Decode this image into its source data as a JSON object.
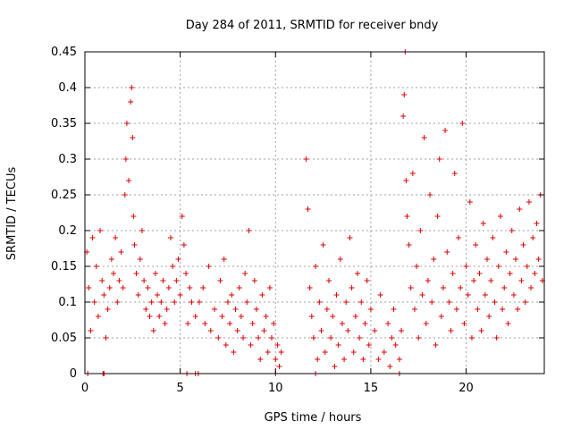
{
  "chart_data": {
    "type": "scatter",
    "title": "Day 284 of 2011, SRMTID for receiver bndy",
    "xlabel": "GPS time / hours",
    "ylabel": "SRMTID / TECUs",
    "xlim": [
      0,
      24.1
    ],
    "ylim": [
      0,
      0.45
    ],
    "xticks": [
      0,
      5,
      10,
      15,
      20
    ],
    "yticks": [
      0,
      0.05,
      0.1,
      0.15,
      0.2,
      0.25,
      0.3,
      0.35,
      0.4,
      0.45
    ],
    "xtick_labels": [
      "0",
      "5",
      "10",
      "15",
      "20"
    ],
    "ytick_labels": [
      "0",
      "0.05",
      "0.1",
      "0.15",
      "0.2",
      "0.25",
      "0.3",
      "0.35",
      "0.4",
      "0.45"
    ],
    "grid": true,
    "marker": "+",
    "color": "#e00000",
    "series": [
      {
        "name": "SRMTID",
        "points": [
          [
            0.1,
            0.17
          ],
          [
            0.2,
            0.12
          ],
          [
            0.3,
            0.06
          ],
          [
            0.4,
            0.19
          ],
          [
            0.5,
            0.1
          ],
          [
            0.6,
            0.15
          ],
          [
            0.7,
            0.08
          ],
          [
            0.8,
            0.2
          ],
          [
            0.9,
            0.13
          ],
          [
            1.0,
            0.11
          ],
          [
            1.1,
            0.05
          ],
          [
            1.2,
            0.09
          ],
          [
            1.3,
            0.12
          ],
          [
            1.4,
            0.16
          ],
          [
            1.5,
            0.14
          ],
          [
            1.6,
            0.19
          ],
          [
            1.7,
            0.1
          ],
          [
            1.8,
            0.13
          ],
          [
            1.9,
            0.17
          ],
          [
            2.0,
            0.12
          ],
          [
            2.1,
            0.25
          ],
          [
            2.15,
            0.3
          ],
          [
            2.2,
            0.35
          ],
          [
            2.3,
            0.27
          ],
          [
            2.4,
            0.38
          ],
          [
            2.45,
            0.4
          ],
          [
            2.5,
            0.33
          ],
          [
            2.55,
            0.22
          ],
          [
            2.6,
            0.18
          ],
          [
            2.7,
            0.14
          ],
          [
            2.8,
            0.11
          ],
          [
            2.9,
            0.16
          ],
          [
            3.0,
            0.2
          ],
          [
            3.1,
            0.13
          ],
          [
            3.2,
            0.09
          ],
          [
            3.3,
            0.12
          ],
          [
            3.4,
            0.08
          ],
          [
            3.5,
            0.1
          ],
          [
            3.6,
            0.06
          ],
          [
            3.7,
            0.14
          ],
          [
            3.8,
            0.11
          ],
          [
            3.9,
            0.08
          ],
          [
            4.0,
            0.1
          ],
          [
            4.1,
            0.13
          ],
          [
            4.2,
            0.07
          ],
          [
            4.3,
            0.09
          ],
          [
            4.4,
            0.12
          ],
          [
            4.5,
            0.19
          ],
          [
            4.6,
            0.15
          ],
          [
            4.7,
            0.1
          ],
          [
            4.8,
            0.13
          ],
          [
            4.9,
            0.16
          ],
          [
            5.0,
            0.11
          ],
          [
            5.1,
            0.22
          ],
          [
            5.2,
            0.18
          ],
          [
            5.3,
            0.14
          ],
          [
            5.4,
            0.07
          ],
          [
            5.5,
            0.12
          ],
          [
            5.6,
            0.1
          ],
          [
            5.8,
            0.08
          ],
          [
            6.0,
            0.1
          ],
          [
            6.2,
            0.12
          ],
          [
            6.3,
            0.07
          ],
          [
            6.5,
            0.15
          ],
          [
            6.6,
            0.06
          ],
          [
            6.8,
            0.09
          ],
          [
            7.0,
            0.05
          ],
          [
            7.1,
            0.13
          ],
          [
            7.2,
            0.08
          ],
          [
            7.3,
            0.16
          ],
          [
            7.4,
            0.04
          ],
          [
            7.5,
            0.1
          ],
          [
            7.6,
            0.07
          ],
          [
            7.7,
            0.11
          ],
          [
            7.8,
            0.03
          ],
          [
            7.9,
            0.09
          ],
          [
            8.0,
            0.06
          ],
          [
            8.1,
            0.12
          ],
          [
            8.2,
            0.08
          ],
          [
            8.3,
            0.05
          ],
          [
            8.4,
            0.14
          ],
          [
            8.5,
            0.1
          ],
          [
            8.6,
            0.2
          ],
          [
            8.7,
            0.04
          ],
          [
            8.8,
            0.07
          ],
          [
            8.9,
            0.13
          ],
          [
            9.0,
            0.09
          ],
          [
            9.1,
            0.05
          ],
          [
            9.2,
            0.02
          ],
          [
            9.3,
            0.11
          ],
          [
            9.4,
            0.06
          ],
          [
            9.5,
            0.08
          ],
          [
            9.6,
            0.03
          ],
          [
            9.7,
            0.12
          ],
          [
            9.8,
            0.05
          ],
          [
            9.9,
            0.07
          ],
          [
            10.0,
            0.02
          ],
          [
            10.1,
            0.04
          ],
          [
            10.2,
            0.01
          ],
          [
            10.3,
            0.03
          ],
          [
            11.6,
            0.3
          ],
          [
            11.7,
            0.23
          ],
          [
            11.8,
            0.12
          ],
          [
            11.9,
            0.08
          ],
          [
            12.0,
            0.05
          ],
          [
            12.1,
            0.15
          ],
          [
            12.2,
            0.02
          ],
          [
            12.3,
            0.1
          ],
          [
            12.4,
            0.06
          ],
          [
            12.5,
            0.18
          ],
          [
            12.6,
            0.03
          ],
          [
            12.7,
            0.09
          ],
          [
            12.8,
            0.13
          ],
          [
            12.9,
            0.05
          ],
          [
            13.0,
            0.08
          ],
          [
            13.1,
            0.01
          ],
          [
            13.2,
            0.11
          ],
          [
            13.3,
            0.04
          ],
          [
            13.4,
            0.16
          ],
          [
            13.5,
            0.07
          ],
          [
            13.6,
            0.02
          ],
          [
            13.7,
            0.1
          ],
          [
            13.8,
            0.06
          ],
          [
            13.9,
            0.19
          ],
          [
            14.0,
            0.12
          ],
          [
            14.1,
            0.03
          ],
          [
            14.2,
            0.08
          ],
          [
            14.3,
            0.14
          ],
          [
            14.4,
            0.05
          ],
          [
            14.5,
            0.1
          ],
          [
            14.6,
            0.02
          ],
          [
            14.7,
            0.07
          ],
          [
            14.8,
            0.13
          ],
          [
            14.9,
            0.04
          ],
          [
            15.0,
            0.09
          ],
          [
            15.2,
            0.06
          ],
          [
            15.4,
            0.02
          ],
          [
            15.5,
            0.11
          ],
          [
            15.7,
            0.03
          ],
          [
            15.9,
            0.07
          ],
          [
            16.0,
            0.01
          ],
          [
            16.1,
            0.05
          ],
          [
            16.2,
            0.09
          ],
          [
            16.3,
            0.04
          ],
          [
            16.5,
            0.02
          ],
          [
            16.6,
            0.06
          ],
          [
            16.7,
            0.36
          ],
          [
            16.75,
            0.39
          ],
          [
            16.8,
            0.45
          ],
          [
            16.85,
            0.27
          ],
          [
            16.9,
            0.22
          ],
          [
            17.0,
            0.18
          ],
          [
            17.1,
            0.12
          ],
          [
            17.2,
            0.28
          ],
          [
            17.3,
            0.09
          ],
          [
            17.4,
            0.15
          ],
          [
            17.5,
            0.05
          ],
          [
            17.6,
            0.2
          ],
          [
            17.7,
            0.11
          ],
          [
            17.8,
            0.33
          ],
          [
            17.9,
            0.07
          ],
          [
            18.0,
            0.13
          ],
          [
            18.1,
            0.25
          ],
          [
            18.2,
            0.1
          ],
          [
            18.3,
            0.16
          ],
          [
            18.4,
            0.04
          ],
          [
            18.5,
            0.22
          ],
          [
            18.6,
            0.3
          ],
          [
            18.7,
            0.08
          ],
          [
            18.8,
            0.12
          ],
          [
            18.9,
            0.34
          ],
          [
            19.0,
            0.17
          ],
          [
            19.1,
            0.1
          ],
          [
            19.2,
            0.06
          ],
          [
            19.3,
            0.14
          ],
          [
            19.4,
            0.28
          ],
          [
            19.5,
            0.09
          ],
          [
            19.6,
            0.19
          ],
          [
            19.7,
            0.12
          ],
          [
            19.8,
            0.35
          ],
          [
            19.9,
            0.07
          ],
          [
            20.0,
            0.15
          ],
          [
            20.1,
            0.11
          ],
          [
            20.2,
            0.24
          ],
          [
            20.3,
            0.05
          ],
          [
            20.4,
            0.13
          ],
          [
            20.5,
            0.18
          ],
          [
            20.6,
            0.09
          ],
          [
            20.7,
            0.14
          ],
          [
            20.8,
            0.06
          ],
          [
            20.9,
            0.21
          ],
          [
            21.0,
            0.11
          ],
          [
            21.1,
            0.16
          ],
          [
            21.2,
            0.08
          ],
          [
            21.3,
            0.13
          ],
          [
            21.4,
            0.19
          ],
          [
            21.5,
            0.1
          ],
          [
            21.6,
            0.05
          ],
          [
            21.7,
            0.15
          ],
          [
            21.8,
            0.22
          ],
          [
            21.9,
            0.09
          ],
          [
            22.0,
            0.12
          ],
          [
            22.1,
            0.17
          ],
          [
            22.2,
            0.07
          ],
          [
            22.3,
            0.14
          ],
          [
            22.4,
            0.2
          ],
          [
            22.5,
            0.11
          ],
          [
            22.6,
            0.16
          ],
          [
            22.7,
            0.09
          ],
          [
            22.8,
            0.23
          ],
          [
            22.9,
            0.13
          ],
          [
            23.0,
            0.18
          ],
          [
            23.1,
            0.1
          ],
          [
            23.2,
            0.15
          ],
          [
            23.3,
            0.24
          ],
          [
            23.4,
            0.12
          ],
          [
            23.5,
            0.19
          ],
          [
            23.6,
            0.14
          ],
          [
            23.7,
            0.21
          ],
          [
            23.8,
            0.16
          ],
          [
            23.9,
            0.25
          ],
          [
            24.0,
            0.13
          ],
          [
            0.15,
            0
          ],
          [
            0.95,
            0
          ],
          [
            1.0,
            0
          ],
          [
            5.35,
            0
          ],
          [
            5.8,
            0
          ],
          [
            5.95,
            0
          ],
          [
            10.0,
            0
          ],
          [
            12.1,
            0
          ],
          [
            16.5,
            0
          ]
        ]
      }
    ]
  }
}
